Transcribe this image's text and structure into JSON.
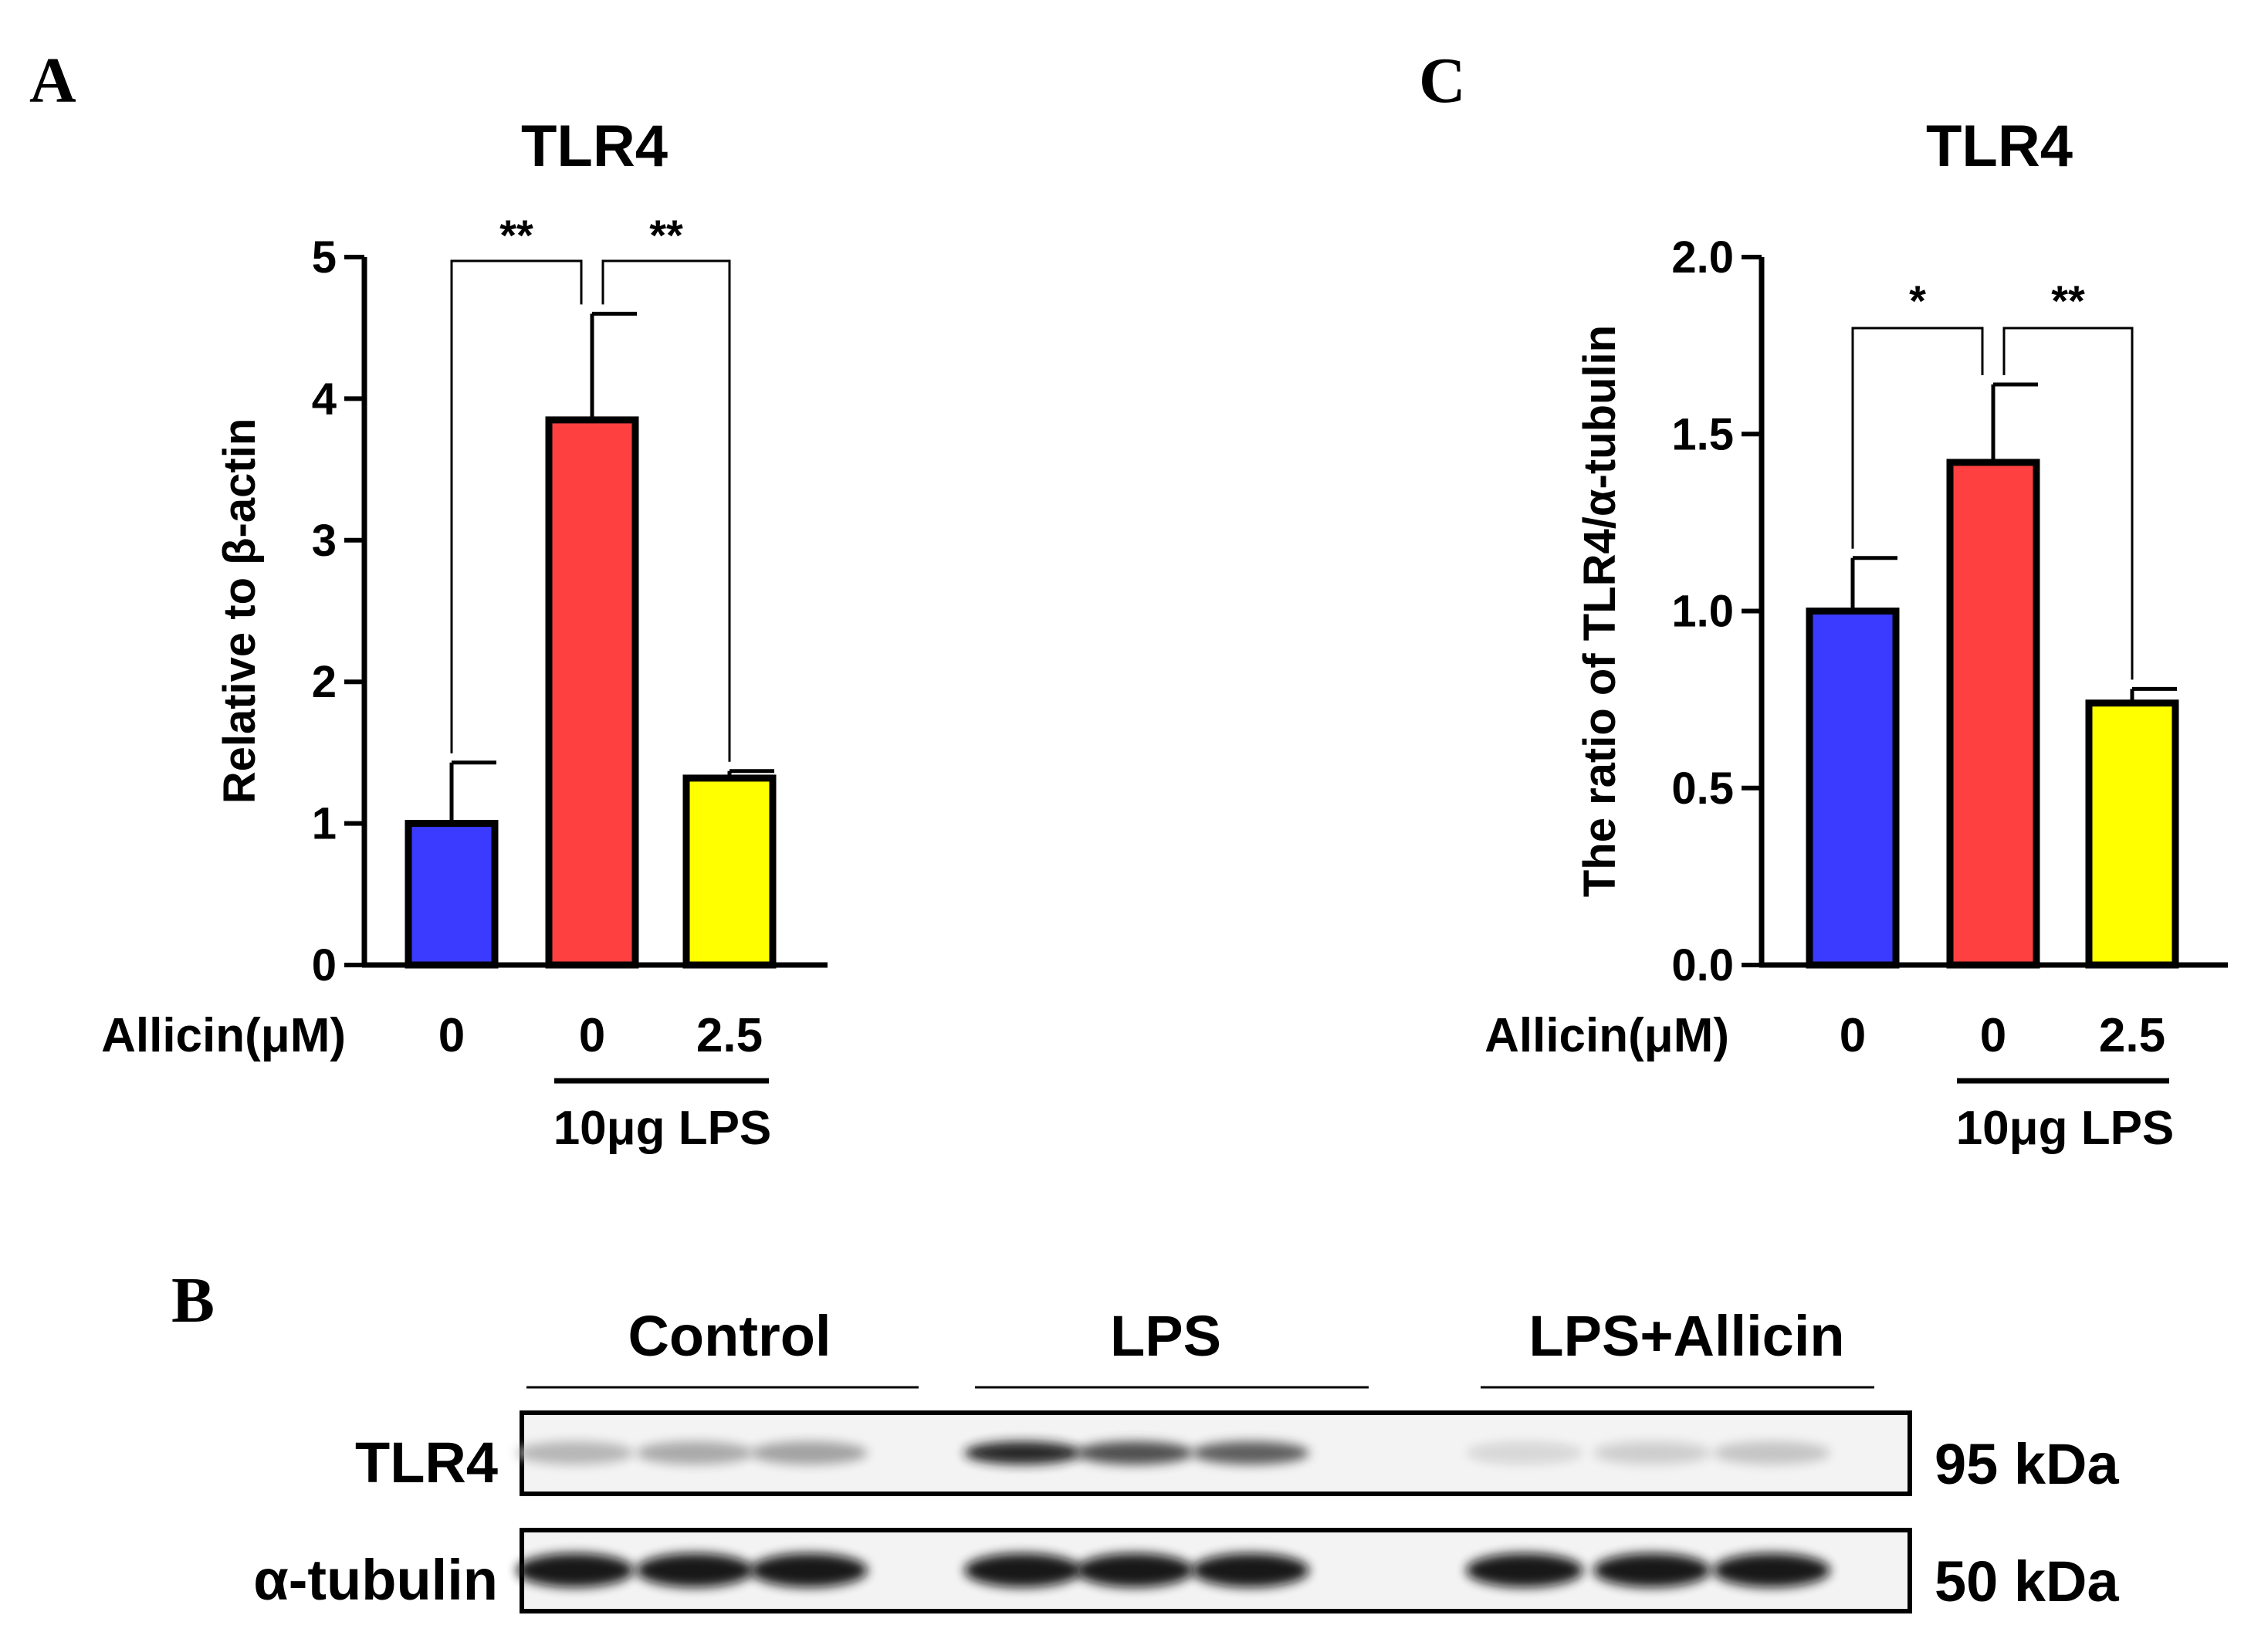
{
  "panels": {
    "a": {
      "letter": "A"
    },
    "b": {
      "letter": "B"
    },
    "c": {
      "letter": "C"
    }
  },
  "chart_data": [
    {
      "type": "bar",
      "title": "TLR4",
      "ylabel": "Relative to β-actin",
      "xlabel": "",
      "ylim": [
        0,
        5
      ],
      "yticks": [
        "0",
        "1",
        "2",
        "3",
        "4",
        "5"
      ],
      "row_label": "Allicin(μM)",
      "categories": [
        "0",
        "0",
        "2.5"
      ],
      "values": [
        1.0,
        3.85,
        1.32
      ],
      "errors": [
        0.43,
        0.75,
        0.05
      ],
      "colors": [
        "#3b3bff",
        "#ff4040",
        "#ffff00"
      ],
      "group_label": "10μg LPS",
      "significance": [
        {
          "from": 0,
          "to": 1,
          "label": "**"
        },
        {
          "from": 1,
          "to": 2,
          "label": "**"
        }
      ]
    },
    {
      "type": "bar",
      "title": "TLR4",
      "ylabel": "The ratio of TLR4/α-tubulin",
      "xlabel": "",
      "ylim": [
        0,
        2.0
      ],
      "yticks": [
        "0.0",
        "0.5",
        "1.0",
        "1.5",
        "2.0"
      ],
      "row_label": "Allicin(μM)",
      "categories": [
        "0",
        "0",
        "2.5"
      ],
      "values": [
        1.0,
        1.42,
        0.74
      ],
      "errors": [
        0.15,
        0.22,
        0.04
      ],
      "colors": [
        "#3b3bff",
        "#ff4040",
        "#ffff00"
      ],
      "group_label": "10μg LPS",
      "significance": [
        {
          "from": 0,
          "to": 1,
          "label": "*"
        },
        {
          "from": 1,
          "to": 2,
          "label": "**"
        }
      ]
    }
  ],
  "blot": {
    "groups": [
      "Control",
      "LPS",
      "LPS+Allicin"
    ],
    "rows": [
      {
        "label": "TLR4",
        "size": "95 kDa",
        "intensities": [
          0.3,
          0.35,
          0.38,
          0.88,
          0.72,
          0.66,
          0.16,
          0.2,
          0.24
        ]
      },
      {
        "label": "α-tubulin",
        "size": "50 kDa",
        "intensities": [
          0.97,
          0.95,
          0.96,
          0.97,
          0.97,
          0.95,
          0.95,
          0.97,
          0.97
        ]
      }
    ]
  }
}
